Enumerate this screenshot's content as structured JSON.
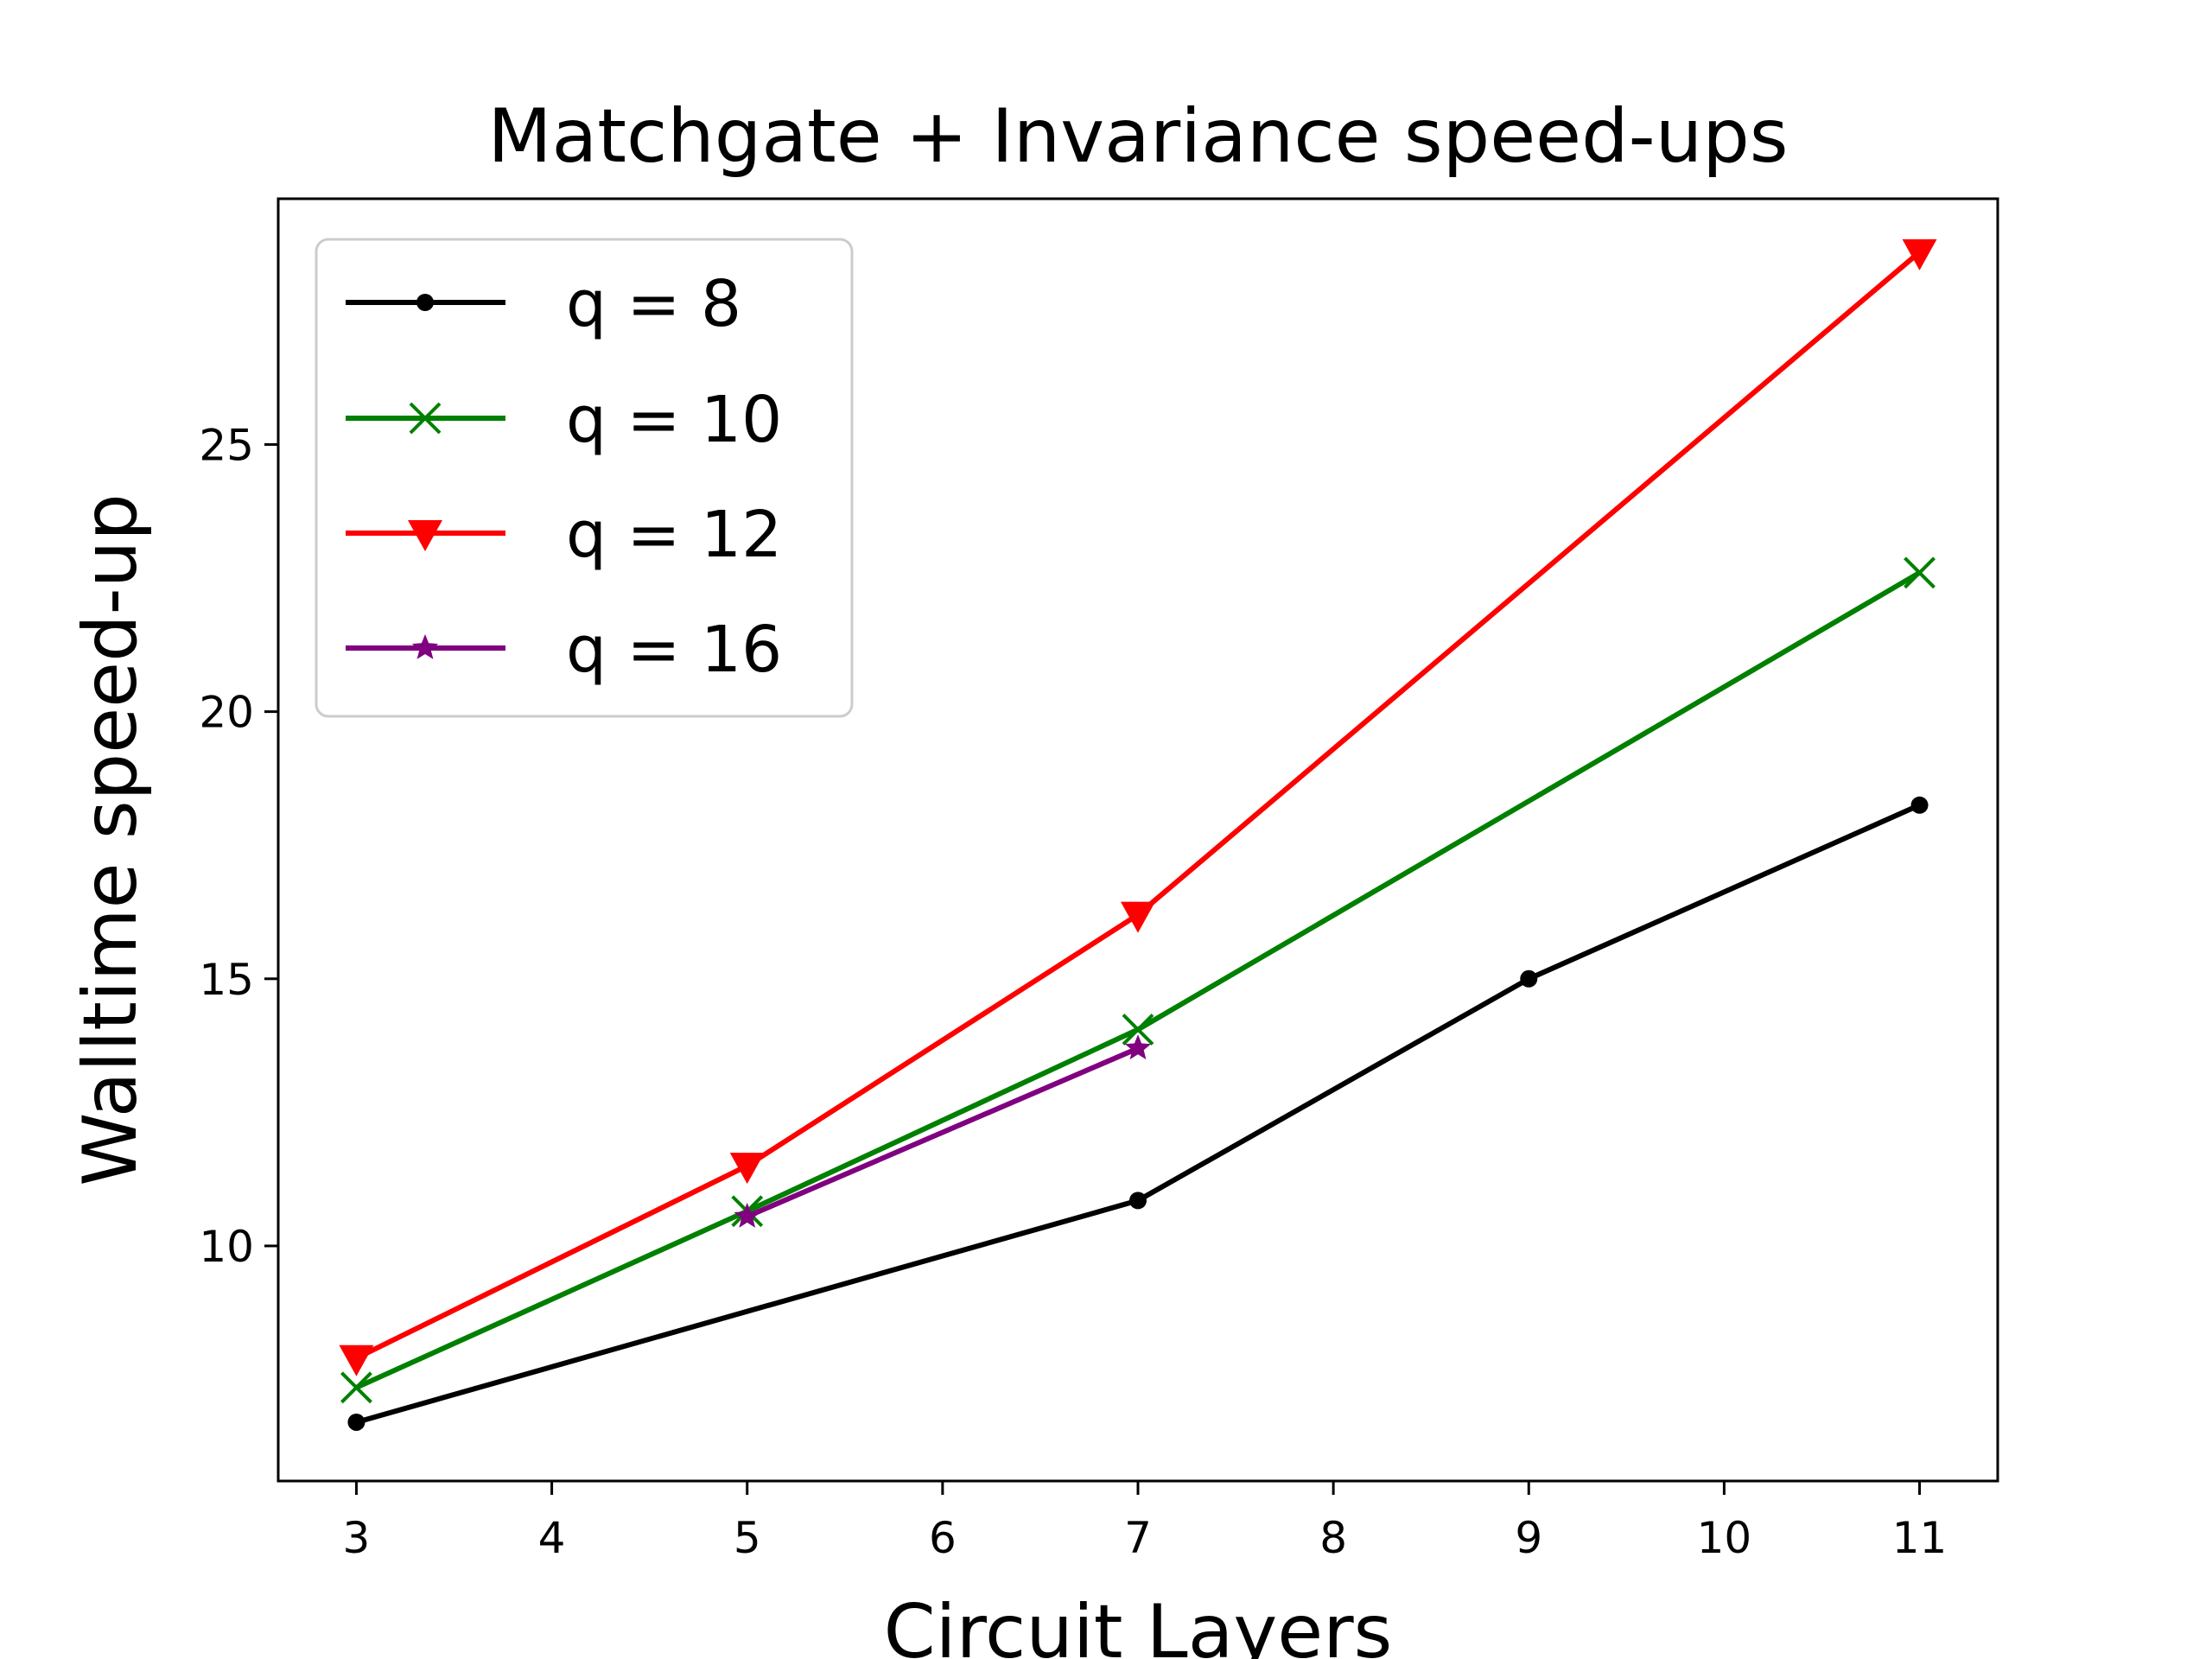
{
  "chart_data": {
    "type": "line",
    "title": "Matchgate + Invariance speed-ups",
    "xlabel": "Circuit Layers",
    "ylabel": "Walltime speed-up",
    "xlim": [
      2.6,
      11.4
    ],
    "ylim": [
      5.6,
      29.6
    ],
    "xticks": [
      3,
      4,
      5,
      6,
      7,
      8,
      9,
      10,
      11
    ],
    "yticks": [
      10,
      15,
      20,
      25
    ],
    "grid": false,
    "legend_position": "upper-left",
    "series": [
      {
        "name": "q = 8",
        "color": "#000000",
        "marker": "dot",
        "x": [
          3,
          7,
          9,
          11
        ],
        "y": [
          6.7,
          10.85,
          15.0,
          18.25
        ]
      },
      {
        "name": "q = 10",
        "color": "#008000",
        "marker": "x",
        "x": [
          3,
          5,
          7,
          11
        ],
        "y": [
          7.35,
          10.65,
          14.05,
          22.6
        ]
      },
      {
        "name": "q = 12",
        "color": "#ff0000",
        "marker": "triangle-down",
        "x": [
          3,
          5,
          7,
          11
        ],
        "y": [
          7.9,
          11.5,
          16.2,
          28.6
        ]
      },
      {
        "name": "q = 16",
        "color": "#800080",
        "marker": "star",
        "x": [
          5,
          7
        ],
        "y": [
          10.55,
          13.7
        ]
      }
    ]
  }
}
